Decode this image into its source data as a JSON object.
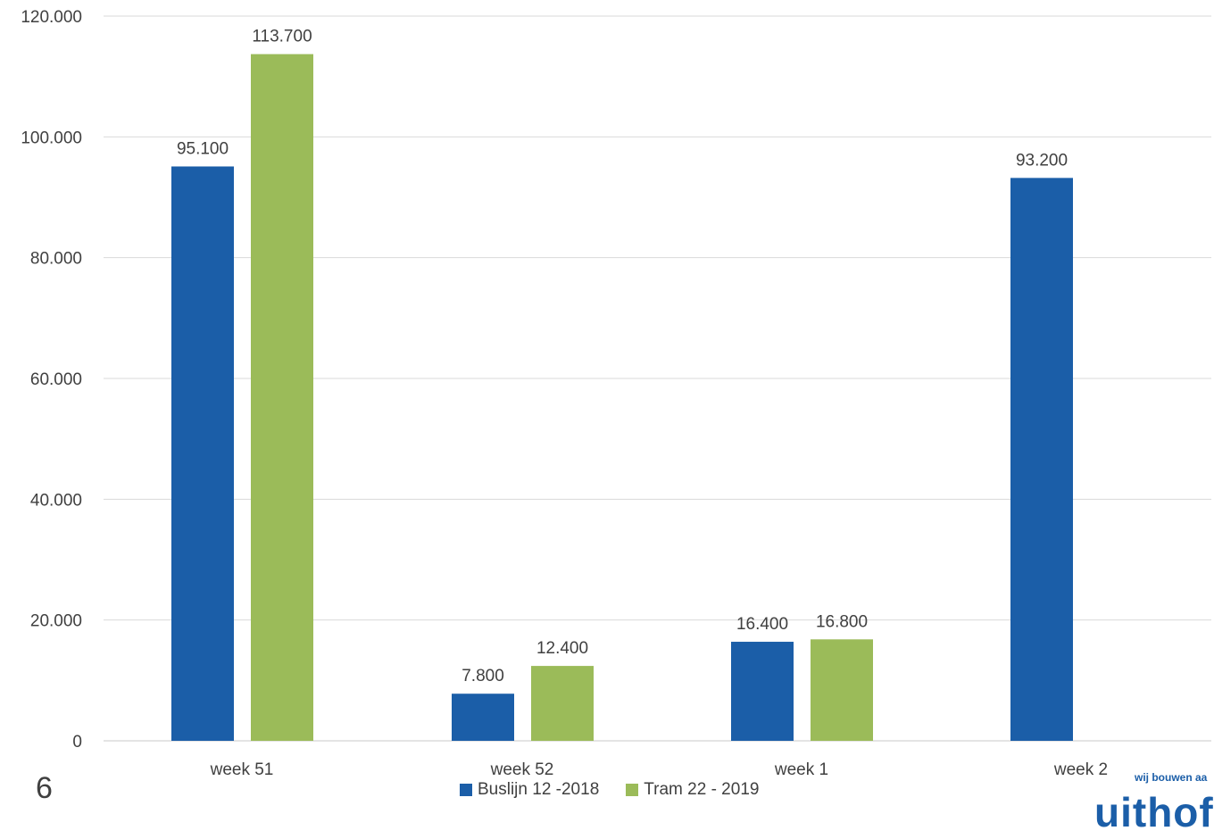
{
  "chart_data": {
    "type": "bar",
    "categories": [
      "week 51",
      "week 52",
      "week 1",
      "week 2"
    ],
    "series": [
      {
        "name": "Buslijn 12 -2018",
        "values": [
          95100,
          7800,
          16400,
          93200
        ],
        "labels": [
          "95.100",
          "7.800",
          "16.400",
          "93.200"
        ],
        "color": "#1b5ea8"
      },
      {
        "name": "Tram 22 - 2019",
        "values": [
          113700,
          12400,
          16800,
          null
        ],
        "labels": [
          "113.700",
          "12.400",
          "16.800",
          null
        ],
        "color": "#9bbb59"
      }
    ],
    "ylim": [
      0,
      120000
    ],
    "yticks": [
      0,
      20000,
      40000,
      60000,
      80000,
      100000,
      120000
    ],
    "ytick_labels": [
      "0",
      "20.000",
      "40.000",
      "60.000",
      "80.000",
      "100.000",
      "120.000"
    ],
    "grid": true,
    "legend_position": "bottom"
  },
  "slide": {
    "number": "6",
    "logo_tagline": "wij bouwen aa",
    "logo_word": "uithof"
  }
}
